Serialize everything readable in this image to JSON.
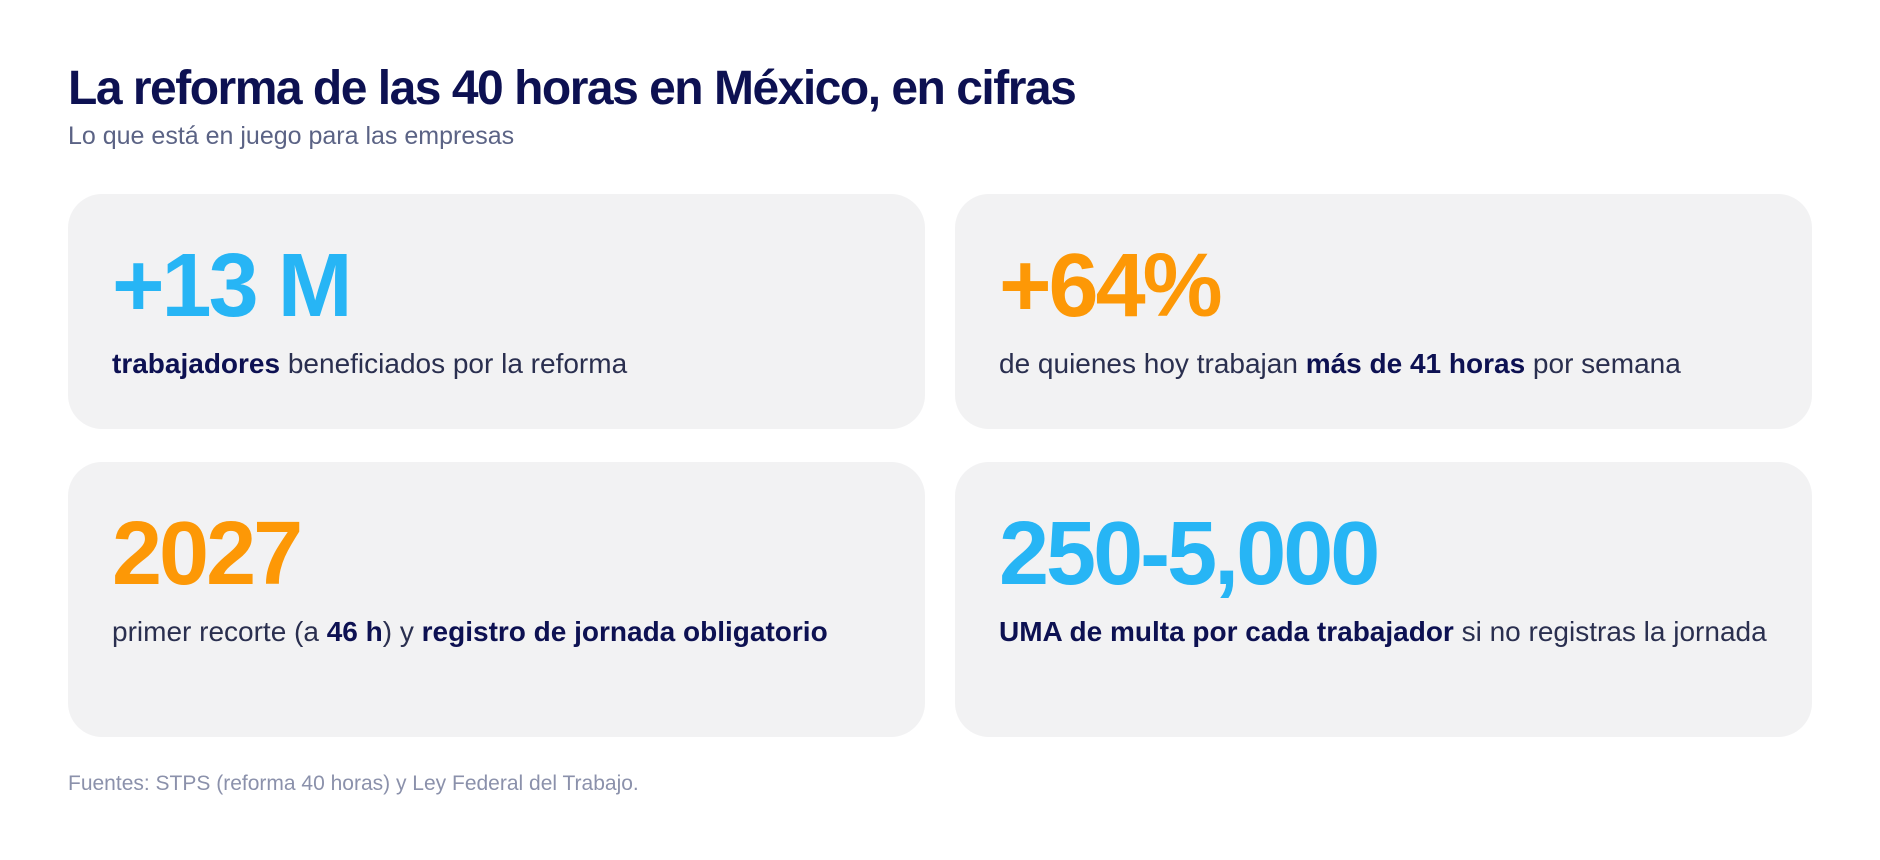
{
  "header": {
    "title": "La reforma de las 40 horas en México, en cifras",
    "subtitle": "Lo que está en juego para las empresas"
  },
  "cards": [
    {
      "stat": "+13 M",
      "stat_color": "#27b5f5",
      "desc": [
        {
          "text": "trabajadores",
          "bold": true
        },
        {
          "text": " beneficiados por la reforma",
          "bold": false
        }
      ]
    },
    {
      "stat": "+64%",
      "stat_color": "#fd9806",
      "desc": [
        {
          "text": "de quienes hoy trabajan ",
          "bold": false
        },
        {
          "text": "más de 41 horas",
          "bold": true
        },
        {
          "text": " por semana",
          "bold": false
        }
      ]
    },
    {
      "stat": "2027",
      "stat_color": "#fd9806",
      "desc": [
        {
          "text": "primer recorte (a ",
          "bold": false
        },
        {
          "text": "46 h",
          "bold": true
        },
        {
          "text": ") y ",
          "bold": false
        },
        {
          "text": "registro de jornada obligatorio",
          "bold": true
        }
      ]
    },
    {
      "stat": "250-5,000",
      "stat_color": "#27b5f5",
      "desc": [
        {
          "text": "UMA de multa por cada trabajador",
          "bold": true
        },
        {
          "text": " si no registras la jornada",
          "bold": false
        }
      ]
    }
  ],
  "footer": {
    "sources": "Fuentes: STPS (reforma 40 horas) y Ley Federal del Trabajo."
  },
  "colors": {
    "title": "#0d1152",
    "blue_accent": "#27b5f5",
    "orange_accent": "#fd9806",
    "card_background": "#f2f2f3"
  }
}
